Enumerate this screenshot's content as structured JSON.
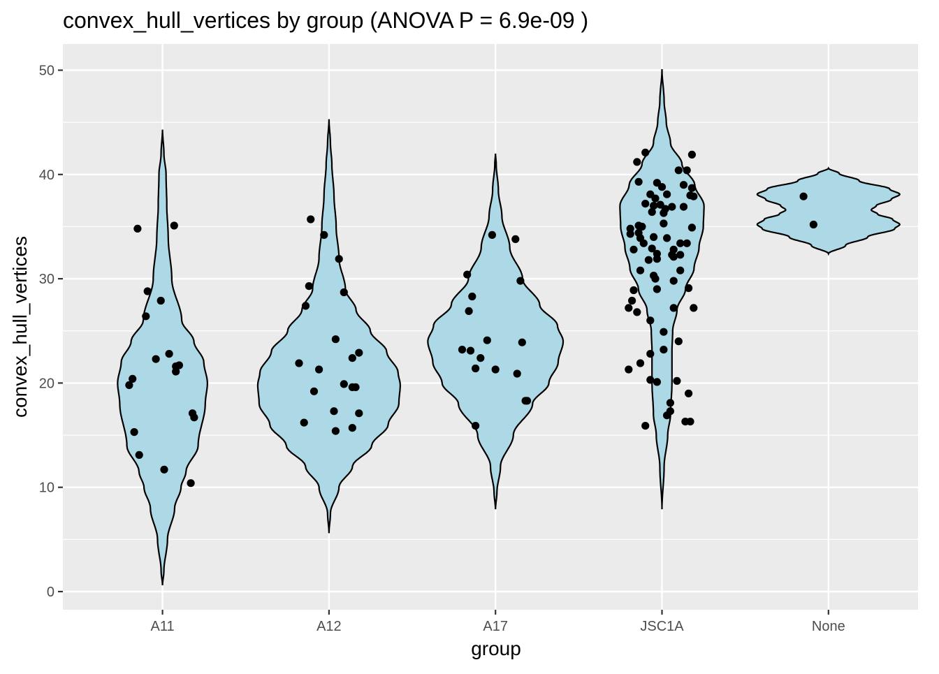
{
  "chart_data": {
    "type": "violin",
    "title": "convex_hull_vertices by group (ANOVA P = 6.9e-09 )",
    "xlabel": "group",
    "ylabel": "convex_hull_vertices",
    "categories": [
      "A11",
      "A12",
      "A17",
      "JSC1A",
      "None"
    ],
    "ylim": [
      -1.7,
      52.6
    ],
    "yticks": [
      0,
      10,
      20,
      30,
      40,
      50
    ],
    "grid": true,
    "legend": "none",
    "colors": {
      "panel": "#ebebeb",
      "grid": "#ffffff",
      "violin_fill": "#add8e6",
      "violin_stroke": "#000000",
      "point": "#000000",
      "tick_text": "#4d4d4d"
    },
    "violins": [
      {
        "group": "A11",
        "profile": [
          [
            0.6,
            0.0
          ],
          [
            2,
            0.02
          ],
          [
            5,
            0.07
          ],
          [
            8,
            0.17
          ],
          [
            10,
            0.26
          ],
          [
            11.5,
            0.33
          ],
          [
            14,
            0.5
          ],
          [
            18,
            0.6
          ],
          [
            20,
            0.63
          ],
          [
            22,
            0.58
          ],
          [
            24,
            0.44
          ],
          [
            26,
            0.27
          ],
          [
            30,
            0.13
          ],
          [
            34,
            0.08
          ],
          [
            37,
            0.06
          ],
          [
            40,
            0.05
          ],
          [
            42,
            0.02
          ],
          [
            44.3,
            0.0
          ]
        ]
      },
      {
        "group": "A12",
        "profile": [
          [
            5.6,
            0.0
          ],
          [
            7.5,
            0.02
          ],
          [
            10,
            0.14
          ],
          [
            12,
            0.33
          ],
          [
            14,
            0.6
          ],
          [
            16,
            0.83
          ],
          [
            18,
            0.98
          ],
          [
            19.8,
            1.0
          ],
          [
            21,
            0.97
          ],
          [
            23,
            0.81
          ],
          [
            25,
            0.58
          ],
          [
            27,
            0.38
          ],
          [
            29,
            0.23
          ],
          [
            32,
            0.14
          ],
          [
            35,
            0.1
          ],
          [
            38,
            0.07
          ],
          [
            41,
            0.04
          ],
          [
            43,
            0.02
          ],
          [
            45.3,
            0.0
          ]
        ]
      },
      {
        "group": "A17",
        "profile": [
          [
            7.9,
            0.0
          ],
          [
            9.5,
            0.02
          ],
          [
            12,
            0.07
          ],
          [
            15,
            0.25
          ],
          [
            18,
            0.52
          ],
          [
            20,
            0.75
          ],
          [
            22,
            0.88
          ],
          [
            24,
            0.95
          ],
          [
            25.5,
            0.87
          ],
          [
            27.5,
            0.62
          ],
          [
            30,
            0.38
          ],
          [
            33,
            0.2
          ],
          [
            36,
            0.09
          ],
          [
            38.5,
            0.04
          ],
          [
            41,
            0.01
          ],
          [
            42,
            0.0
          ]
        ]
      },
      {
        "group": "JSC1A",
        "profile": [
          [
            7.9,
            0.0
          ],
          [
            12,
            0.03
          ],
          [
            15,
            0.08
          ],
          [
            17,
            0.12
          ],
          [
            20,
            0.14
          ],
          [
            23,
            0.14
          ],
          [
            25,
            0.15
          ],
          [
            27,
            0.21
          ],
          [
            29,
            0.33
          ],
          [
            31,
            0.45
          ],
          [
            33,
            0.52
          ],
          [
            35,
            0.58
          ],
          [
            37,
            0.59
          ],
          [
            39,
            0.46
          ],
          [
            41,
            0.28
          ],
          [
            43,
            0.12
          ],
          [
            45,
            0.06
          ],
          [
            47,
            0.03
          ],
          [
            50.1,
            0.0
          ]
        ]
      },
      {
        "group": "None",
        "profile": [
          [
            32.4,
            0.0
          ],
          [
            33.2,
            0.24
          ],
          [
            34.0,
            0.55
          ],
          [
            34.8,
            0.93
          ],
          [
            35.2,
            1.0
          ],
          [
            35.7,
            0.9
          ],
          [
            36.2,
            0.69
          ],
          [
            36.6,
            0.6
          ],
          [
            37.0,
            0.67
          ],
          [
            37.6,
            0.88
          ],
          [
            38.1,
            1.0
          ],
          [
            38.6,
            0.86
          ],
          [
            39.4,
            0.43
          ],
          [
            40.1,
            0.15
          ],
          [
            40.6,
            0.0
          ]
        ]
      }
    ],
    "points": [
      {
        "group": "A11",
        "offset": -0.15,
        "y": 34.8
      },
      {
        "group": "A11",
        "offset": 0.07,
        "y": 35.1
      },
      {
        "group": "A11",
        "offset": -0.09,
        "y": 28.8
      },
      {
        "group": "A11",
        "offset": -0.01,
        "y": 27.9
      },
      {
        "group": "A11",
        "offset": -0.1,
        "y": 26.4
      },
      {
        "group": "A11",
        "offset": 0.04,
        "y": 22.8
      },
      {
        "group": "A11",
        "offset": -0.04,
        "y": 22.3
      },
      {
        "group": "A11",
        "offset": 0.1,
        "y": 21.7
      },
      {
        "group": "A11",
        "offset": 0.08,
        "y": 21.6
      },
      {
        "group": "A11",
        "offset": 0.08,
        "y": 21.1
      },
      {
        "group": "A11",
        "offset": -0.18,
        "y": 20.4
      },
      {
        "group": "A11",
        "offset": -0.2,
        "y": 19.8
      },
      {
        "group": "A11",
        "offset": 0.18,
        "y": 17.1
      },
      {
        "group": "A11",
        "offset": 0.19,
        "y": 16.7
      },
      {
        "group": "A11",
        "offset": -0.17,
        "y": 15.3
      },
      {
        "group": "A11",
        "offset": -0.14,
        "y": 13.1
      },
      {
        "group": "A11",
        "offset": 0.01,
        "y": 11.7
      },
      {
        "group": "A11",
        "offset": 0.17,
        "y": 10.4
      },
      {
        "group": "A12",
        "offset": -0.11,
        "y": 35.7
      },
      {
        "group": "A12",
        "offset": -0.03,
        "y": 34.2
      },
      {
        "group": "A12",
        "offset": 0.06,
        "y": 31.9
      },
      {
        "group": "A12",
        "offset": -0.12,
        "y": 29.3
      },
      {
        "group": "A12",
        "offset": 0.09,
        "y": 28.7
      },
      {
        "group": "A12",
        "offset": -0.14,
        "y": 27.4
      },
      {
        "group": "A12",
        "offset": 0.04,
        "y": 24.2
      },
      {
        "group": "A12",
        "offset": 0.18,
        "y": 22.9
      },
      {
        "group": "A12",
        "offset": 0.14,
        "y": 22.4
      },
      {
        "group": "A12",
        "offset": -0.18,
        "y": 21.9
      },
      {
        "group": "A12",
        "offset": -0.06,
        "y": 21.3
      },
      {
        "group": "A12",
        "offset": 0.09,
        "y": 19.9
      },
      {
        "group": "A12",
        "offset": 0.14,
        "y": 19.6
      },
      {
        "group": "A12",
        "offset": 0.16,
        "y": 19.6
      },
      {
        "group": "A12",
        "offset": -0.09,
        "y": 19.2
      },
      {
        "group": "A12",
        "offset": 0.03,
        "y": 17.3
      },
      {
        "group": "A12",
        "offset": 0.18,
        "y": 17.1
      },
      {
        "group": "A12",
        "offset": -0.15,
        "y": 16.2
      },
      {
        "group": "A12",
        "offset": 0.14,
        "y": 15.7
      },
      {
        "group": "A12",
        "offset": 0.04,
        "y": 15.4
      },
      {
        "group": "A17",
        "offset": -0.17,
        "y": 30.4
      },
      {
        "group": "A17",
        "offset": -0.14,
        "y": 28.3
      },
      {
        "group": "A17",
        "offset": -0.16,
        "y": 26.9
      },
      {
        "group": "A17",
        "offset": 0.12,
        "y": 33.8
      },
      {
        "group": "A17",
        "offset": -0.02,
        "y": 34.2
      },
      {
        "group": "A17",
        "offset": 0.15,
        "y": 29.8
      },
      {
        "group": "A17",
        "offset": -0.05,
        "y": 24.1
      },
      {
        "group": "A17",
        "offset": 0.16,
        "y": 23.9
      },
      {
        "group": "A17",
        "offset": -0.2,
        "y": 23.2
      },
      {
        "group": "A17",
        "offset": -0.15,
        "y": 23.1
      },
      {
        "group": "A17",
        "offset": -0.09,
        "y": 22.4
      },
      {
        "group": "A17",
        "offset": -0.12,
        "y": 21.4
      },
      {
        "group": "A17",
        "offset": 0.0,
        "y": 21.3
      },
      {
        "group": "A17",
        "offset": 0.13,
        "y": 20.9
      },
      {
        "group": "A17",
        "offset": 0.18,
        "y": 18.3
      },
      {
        "group": "A17",
        "offset": 0.19,
        "y": 18.3
      },
      {
        "group": "A17",
        "offset": -0.12,
        "y": 15.9
      },
      {
        "group": "JSC1A",
        "offset": -0.1,
        "y": 42.1
      },
      {
        "group": "JSC1A",
        "offset": 0.18,
        "y": 41.9
      },
      {
        "group": "JSC1A",
        "offset": -0.15,
        "y": 41.2
      },
      {
        "group": "JSC1A",
        "offset": 0.1,
        "y": 40.4
      },
      {
        "group": "JSC1A",
        "offset": 0.15,
        "y": 40.4
      },
      {
        "group": "JSC1A",
        "offset": -0.14,
        "y": 39.3
      },
      {
        "group": "JSC1A",
        "offset": -0.03,
        "y": 39.2
      },
      {
        "group": "JSC1A",
        "offset": 0.0,
        "y": 38.8
      },
      {
        "group": "JSC1A",
        "offset": 0.13,
        "y": 39.0
      },
      {
        "group": "JSC1A",
        "offset": 0.18,
        "y": 38.7
      },
      {
        "group": "JSC1A",
        "offset": -0.07,
        "y": 38.1
      },
      {
        "group": "JSC1A",
        "offset": 0.03,
        "y": 38.1
      },
      {
        "group": "JSC1A",
        "offset": 0.17,
        "y": 38.0
      },
      {
        "group": "JSC1A",
        "offset": 0.19,
        "y": 37.9
      },
      {
        "group": "JSC1A",
        "offset": -0.04,
        "y": 37.7
      },
      {
        "group": "JSC1A",
        "offset": -0.1,
        "y": 37.2
      },
      {
        "group": "JSC1A",
        "offset": -0.05,
        "y": 37.0
      },
      {
        "group": "JSC1A",
        "offset": -0.01,
        "y": 37.1
      },
      {
        "group": "JSC1A",
        "offset": 0.06,
        "y": 36.9
      },
      {
        "group": "JSC1A",
        "offset": 0.13,
        "y": 36.9
      },
      {
        "group": "JSC1A",
        "offset": -0.06,
        "y": 36.4
      },
      {
        "group": "JSC1A",
        "offset": 0.01,
        "y": 36.3
      },
      {
        "group": "JSC1A",
        "offset": 0.02,
        "y": 36.7
      },
      {
        "group": "JSC1A",
        "offset": 0.01,
        "y": 35.3
      },
      {
        "group": "JSC1A",
        "offset": -0.14,
        "y": 35.1
      },
      {
        "group": "JSC1A",
        "offset": -0.12,
        "y": 35.0
      },
      {
        "group": "JSC1A",
        "offset": 0.18,
        "y": 34.9
      },
      {
        "group": "JSC1A",
        "offset": -0.19,
        "y": 34.8
      },
      {
        "group": "JSC1A",
        "offset": -0.14,
        "y": 34.4
      },
      {
        "group": "JSC1A",
        "offset": -0.19,
        "y": 34.3
      },
      {
        "group": "JSC1A",
        "offset": -0.13,
        "y": 33.9
      },
      {
        "group": "JSC1A",
        "offset": -0.05,
        "y": 34.0
      },
      {
        "group": "JSC1A",
        "offset": 0.03,
        "y": 33.9
      },
      {
        "group": "JSC1A",
        "offset": -0.11,
        "y": 33.4
      },
      {
        "group": "JSC1A",
        "offset": 0.11,
        "y": 33.4
      },
      {
        "group": "JSC1A",
        "offset": 0.15,
        "y": 33.4
      },
      {
        "group": "JSC1A",
        "offset": -0.17,
        "y": 32.8
      },
      {
        "group": "JSC1A",
        "offset": -0.06,
        "y": 32.9
      },
      {
        "group": "JSC1A",
        "offset": 0.07,
        "y": 32.8
      },
      {
        "group": "JSC1A",
        "offset": -0.03,
        "y": 32.4
      },
      {
        "group": "JSC1A",
        "offset": 0.06,
        "y": 32.3
      },
      {
        "group": "JSC1A",
        "offset": 0.11,
        "y": 32.3
      },
      {
        "group": "JSC1A",
        "offset": 0.07,
        "y": 32.1
      },
      {
        "group": "JSC1A",
        "offset": -0.03,
        "y": 31.9
      },
      {
        "group": "JSC1A",
        "offset": -0.08,
        "y": 31.8
      },
      {
        "group": "JSC1A",
        "offset": -0.13,
        "y": 30.8
      },
      {
        "group": "JSC1A",
        "offset": 0.11,
        "y": 30.8
      },
      {
        "group": "JSC1A",
        "offset": -0.05,
        "y": 30.3
      },
      {
        "group": "JSC1A",
        "offset": -0.04,
        "y": 30.0
      },
      {
        "group": "JSC1A",
        "offset": 0.07,
        "y": 29.8
      },
      {
        "group": "JSC1A",
        "offset": -0.17,
        "y": 28.9
      },
      {
        "group": "JSC1A",
        "offset": -0.03,
        "y": 29.0
      },
      {
        "group": "JSC1A",
        "offset": 0.16,
        "y": 29.1
      },
      {
        "group": "JSC1A",
        "offset": -0.18,
        "y": 27.9
      },
      {
        "group": "JSC1A",
        "offset": -0.2,
        "y": 27.2
      },
      {
        "group": "JSC1A",
        "offset": 0.07,
        "y": 27.2
      },
      {
        "group": "JSC1A",
        "offset": 0.19,
        "y": 27.2
      },
      {
        "group": "JSC1A",
        "offset": -0.15,
        "y": 26.8
      },
      {
        "group": "JSC1A",
        "offset": -0.07,
        "y": 26.0
      },
      {
        "group": "JSC1A",
        "offset": 0.01,
        "y": 24.9
      },
      {
        "group": "JSC1A",
        "offset": 0.1,
        "y": 24.0
      },
      {
        "group": "JSC1A",
        "offset": 0.01,
        "y": 23.2
      },
      {
        "group": "JSC1A",
        "offset": -0.07,
        "y": 22.8
      },
      {
        "group": "JSC1A",
        "offset": -0.13,
        "y": 21.9
      },
      {
        "group": "JSC1A",
        "offset": -0.2,
        "y": 21.3
      },
      {
        "group": "JSC1A",
        "offset": -0.07,
        "y": 20.3
      },
      {
        "group": "JSC1A",
        "offset": -0.03,
        "y": 20.1
      },
      {
        "group": "JSC1A",
        "offset": 0.09,
        "y": 20.2
      },
      {
        "group": "JSC1A",
        "offset": 0.16,
        "y": 19.0
      },
      {
        "group": "JSC1A",
        "offset": 0.05,
        "y": 18.1
      },
      {
        "group": "JSC1A",
        "offset": 0.05,
        "y": 17.3
      },
      {
        "group": "JSC1A",
        "offset": 0.03,
        "y": 16.9
      },
      {
        "group": "JSC1A",
        "offset": 0.14,
        "y": 16.3
      },
      {
        "group": "JSC1A",
        "offset": 0.17,
        "y": 16.3
      },
      {
        "group": "JSC1A",
        "offset": -0.1,
        "y": 15.9
      },
      {
        "group": "None",
        "offset": -0.15,
        "y": 37.9
      },
      {
        "group": "None",
        "offset": -0.09,
        "y": 35.2
      }
    ]
  }
}
